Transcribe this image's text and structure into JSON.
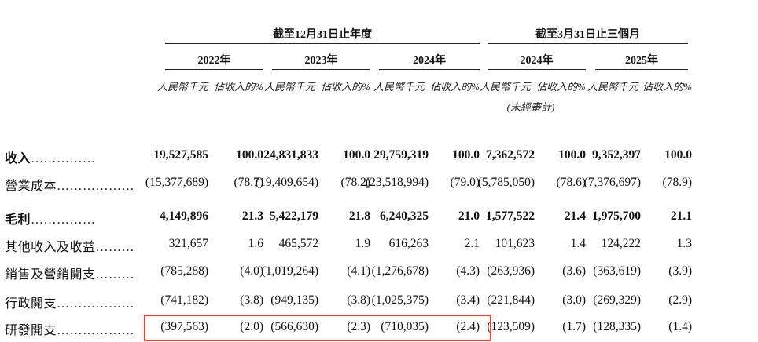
{
  "header": {
    "group_year": "截至12月31日止年度",
    "group_quarter": "截至3月31日止三個月",
    "years": [
      "2022年",
      "2023年",
      "2024年",
      "2024年",
      "2025年"
    ],
    "col_amount": "人民幣千元",
    "col_pct": "佔收入的%",
    "unaudited": "(未經審計)"
  },
  "rows": [
    {
      "label": "收入",
      "dots": "……………",
      "bold": true,
      "values": [
        "19,527,585",
        "100.0",
        "24,831,833",
        "100.0",
        "29,759,319",
        "100.0",
        "7,362,572",
        "100.0",
        "9,352,397",
        "100.0"
      ]
    },
    {
      "label": "營業成本",
      "dots": "………………",
      "bold": false,
      "values": [
        "(15,377,689)",
        "(78.7)",
        "(19,409,654)",
        "(78.2)",
        "(23,518,994)",
        "(79.0)",
        "(5,785,050)",
        "(78.6)",
        "(7,376,697)",
        "(78.9)"
      ]
    },
    {
      "label": "毛利",
      "dots": "……………",
      "bold": true,
      "values": [
        "4,149,896",
        "21.3",
        "5,422,179",
        "21.8",
        "6,240,325",
        "21.0",
        "1,577,522",
        "21.4",
        "1,975,700",
        "21.1"
      ]
    },
    {
      "label": "其他收入及收益",
      "dots": "………",
      "bold": false,
      "values": [
        "321,657",
        "1.6",
        "465,572",
        "1.9",
        "616,263",
        "2.1",
        "101,623",
        "1.4",
        "124,222",
        "1.3"
      ]
    },
    {
      "label": "銷售及營銷開支",
      "dots": "………",
      "bold": false,
      "values": [
        "(785,288)",
        "(4.0)",
        "(1,019,264)",
        "(4.1)",
        "(1,276,678)",
        "(4.3)",
        "(263,936)",
        "(3.6)",
        "(363,619)",
        "(3.9)"
      ]
    },
    {
      "label": "行政開支",
      "dots": "………………",
      "bold": false,
      "values": [
        "(741,182)",
        "(3.8)",
        "(949,135)",
        "(3.8)",
        "(1,025,375)",
        "(3.4)",
        "(221,844)",
        "(3.0)",
        "(269,329)",
        "(2.9)"
      ]
    },
    {
      "label": "研發開支",
      "dots": "………………",
      "bold": false,
      "values": [
        "(397,563)",
        "(2.0)",
        "(566,630)",
        "(2.3)",
        "(710,035)",
        "(2.4)",
        "(123,509)",
        "(1.7)",
        "(128,335)",
        "(1.4)"
      ]
    }
  ],
  "highlight_color": "#e0453a"
}
